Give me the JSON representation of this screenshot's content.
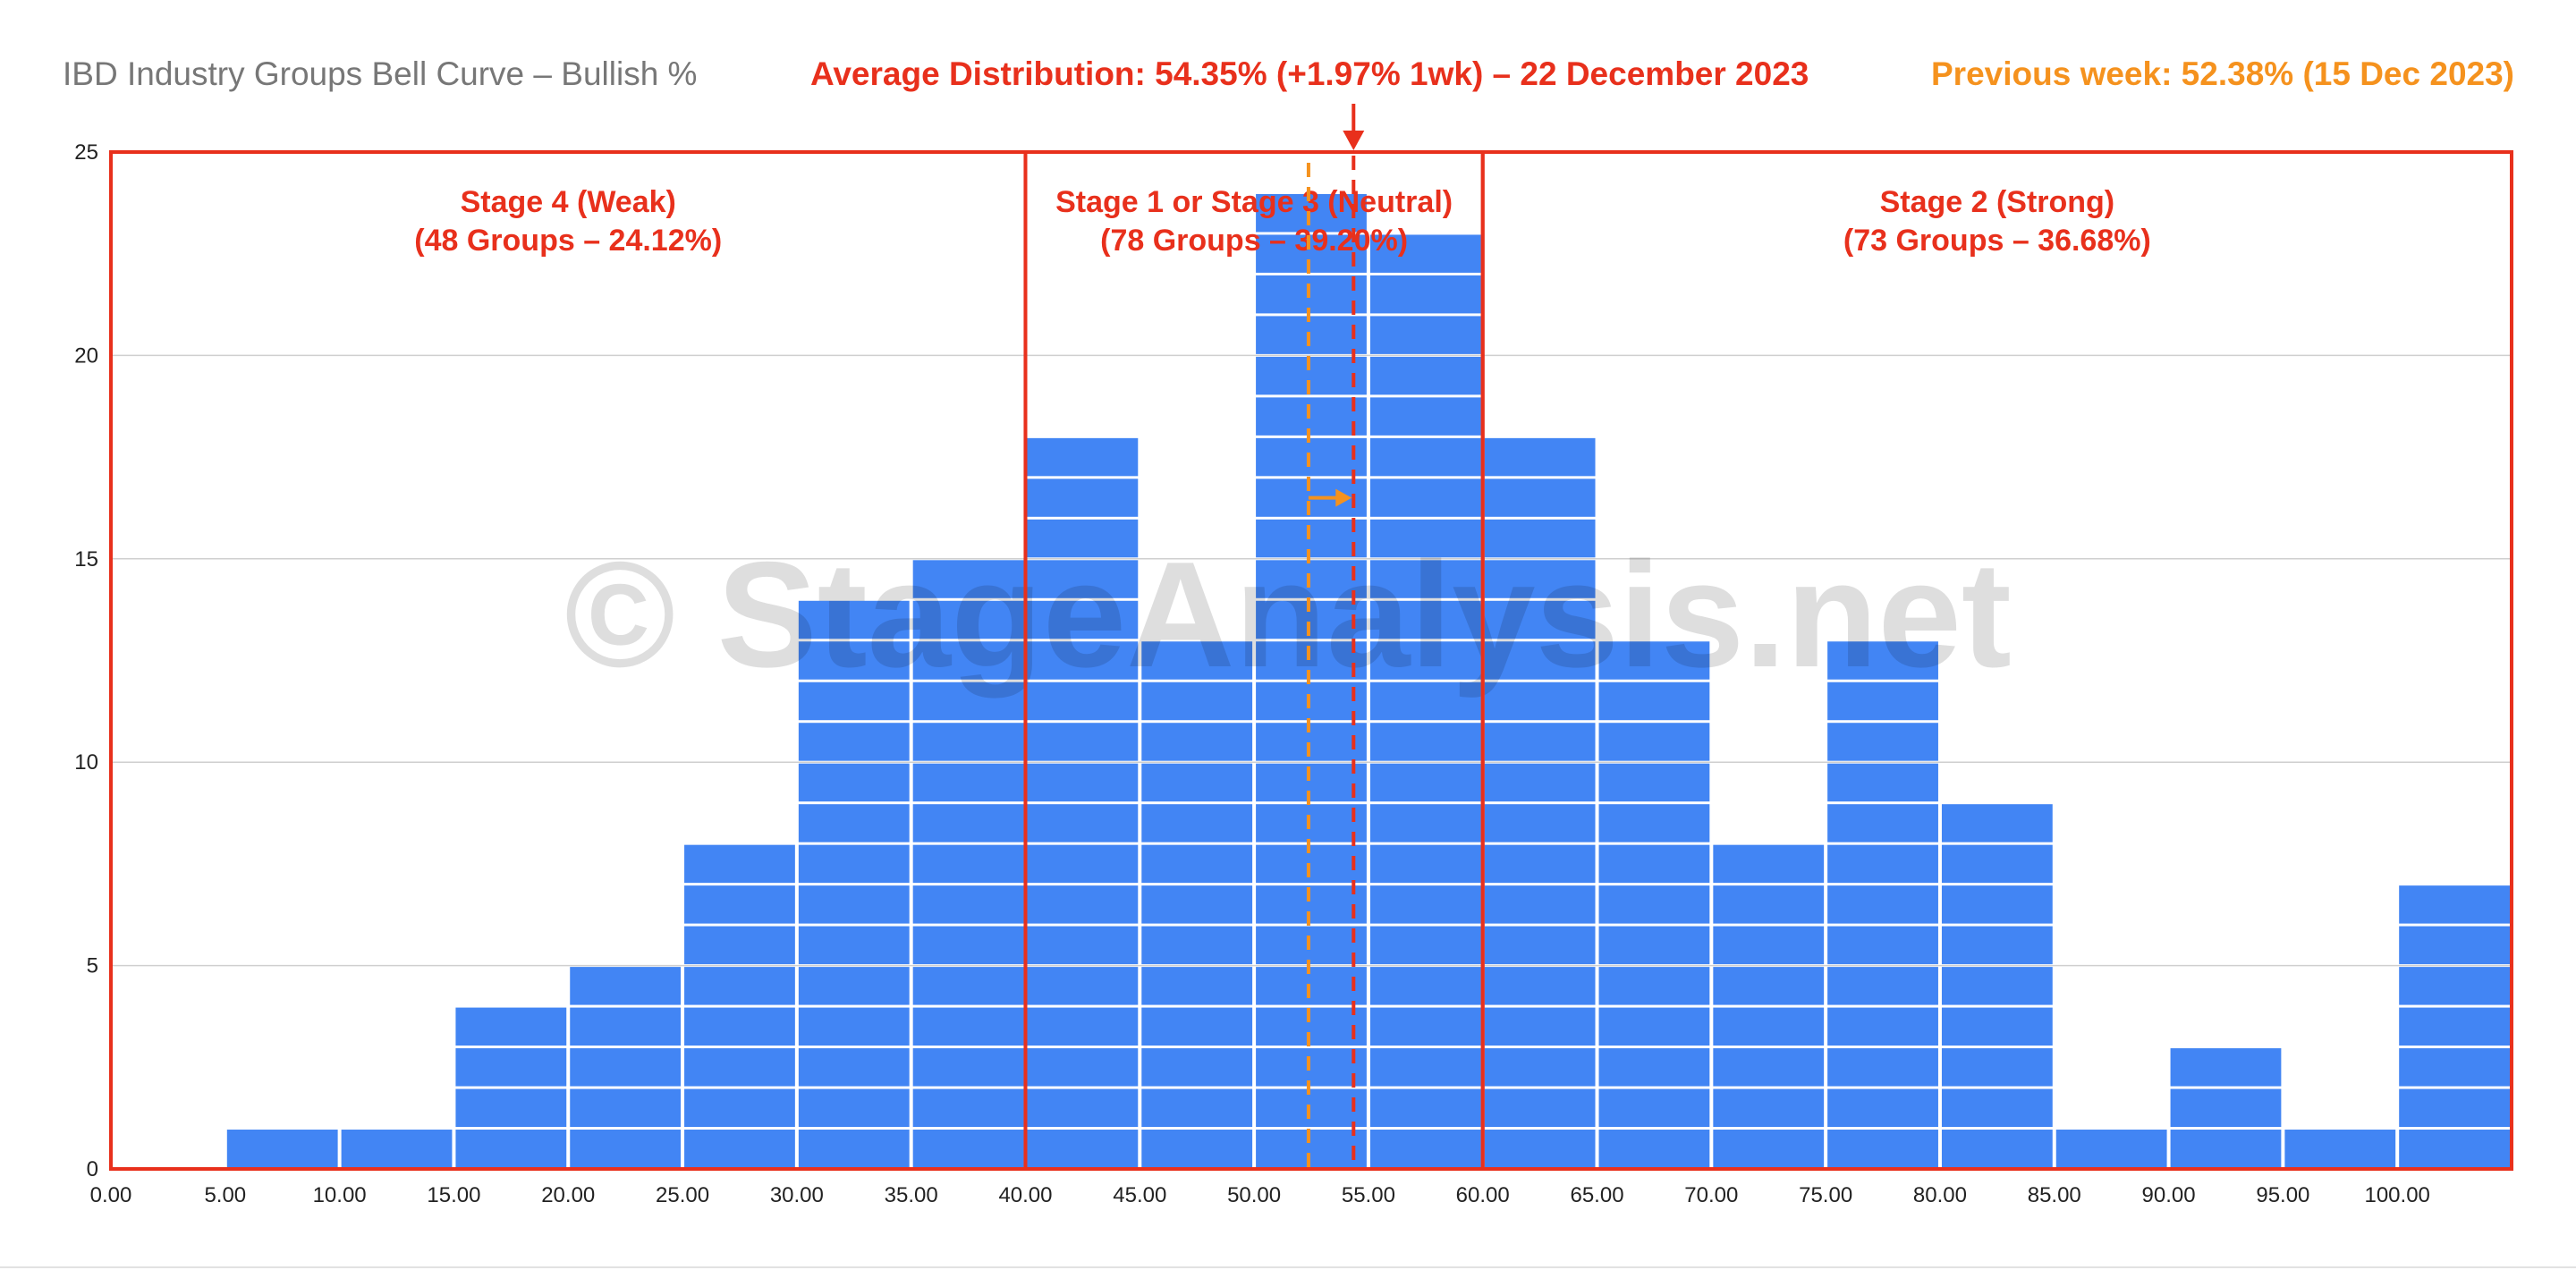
{
  "header": {
    "title": "IBD Industry Groups Bell Curve – Bullish %",
    "average_label": "Average Distribution: 54.35% (+1.97% 1wk) – 22 December 2023",
    "previous_label": "Previous week: 52.38% (15 Dec 2023)"
  },
  "watermark": "© StageAnalysis.net",
  "colors": {
    "bar": "#4285f4",
    "stage_red": "#e8301c",
    "previous_orange": "#f5921e",
    "title_gray": "#777777"
  },
  "chart_data": {
    "type": "bar",
    "title": "IBD Industry Groups Bell Curve – Bullish %",
    "xlabel": "",
    "ylabel": "",
    "xlim": [
      0,
      100
    ],
    "ylim": [
      0,
      25
    ],
    "x_ticks": [
      "0.00",
      "5.00",
      "10.00",
      "15.00",
      "20.00",
      "25.00",
      "30.00",
      "35.00",
      "40.00",
      "45.00",
      "50.00",
      "55.00",
      "60.00",
      "65.00",
      "70.00",
      "75.00",
      "80.00",
      "85.00",
      "90.00",
      "95.00",
      "100.00"
    ],
    "y_ticks": [
      "0",
      "5",
      "10",
      "15",
      "20",
      "25"
    ],
    "grid": true,
    "bins": [
      {
        "from": 0,
        "to": 5,
        "value": 0
      },
      {
        "from": 5,
        "to": 10,
        "value": 1
      },
      {
        "from": 10,
        "to": 15,
        "value": 1
      },
      {
        "from": 15,
        "to": 20,
        "value": 4
      },
      {
        "from": 20,
        "to": 25,
        "value": 5
      },
      {
        "from": 25,
        "to": 30,
        "value": 8
      },
      {
        "from": 30,
        "to": 35,
        "value": 14
      },
      {
        "from": 35,
        "to": 40,
        "value": 15
      },
      {
        "from": 40,
        "to": 45,
        "value": 18
      },
      {
        "from": 45,
        "to": 50,
        "value": 13
      },
      {
        "from": 50,
        "to": 55,
        "value": 24
      },
      {
        "from": 55,
        "to": 60,
        "value": 23
      },
      {
        "from": 60,
        "to": 65,
        "value": 18
      },
      {
        "from": 65,
        "to": 70,
        "value": 13
      },
      {
        "from": 70,
        "to": 75,
        "value": 8
      },
      {
        "from": 75,
        "to": 80,
        "value": 13
      },
      {
        "from": 80,
        "to": 85,
        "value": 9
      },
      {
        "from": 85,
        "to": 90,
        "value": 1
      },
      {
        "from": 90,
        "to": 95,
        "value": 3
      },
      {
        "from": 95,
        "to": 100,
        "value": 1
      },
      {
        "from": 100,
        "to": 105,
        "value": 7
      }
    ],
    "stages": [
      {
        "from": 0,
        "to": 40,
        "line1": "Stage 4 (Weak)",
        "line2": "(48 Groups – 24.12%)"
      },
      {
        "from": 40,
        "to": 60,
        "line1": "Stage 1 or Stage 3 (Neutral)",
        "line2": "(78 Groups – 39.20%)"
      },
      {
        "from": 60,
        "to": 105,
        "line1": "Stage 2 (Strong)",
        "line2": "(73 Groups – 36.68%)"
      }
    ],
    "average": 54.35,
    "previous_average": 52.38
  }
}
